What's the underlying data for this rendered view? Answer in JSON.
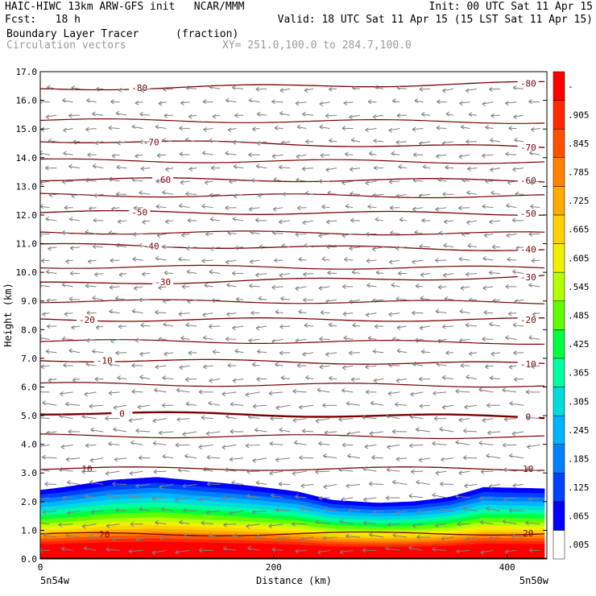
{
  "header": {
    "line1_left": "HAIC-HIWC 13km ARW-GFS init   NCAR/MMM",
    "line1_right": "Init: 00 UTC Sat 11 Apr 15",
    "fcst": "Fcst:   18 h",
    "valid": "Valid: 18 UTC Sat 11 Apr 15 (15 LST Sat 11 Apr 15)",
    "field": "Boundary Layer Tracer",
    "field_units": "(fraction)",
    "overlay": "Circulation vectors",
    "xsec": "XY= 251.0,100.0 to 284.7,100.0"
  },
  "chart_data": {
    "type": "heatmap",
    "xlabel": "Distance (km)",
    "ylabel": "Height (km)",
    "xlim": [
      0,
      434
    ],
    "ylim": [
      0,
      17
    ],
    "x_ticks": [
      "0",
      "200",
      "400"
    ],
    "y_ticks": [
      "0.0",
      "1.0",
      "2.0",
      "3.0",
      "4.0",
      "5.0",
      "6.0",
      "7.0",
      "8.0",
      "9.0",
      "10.0",
      "11.0",
      "12.0",
      "13.0",
      "14.0",
      "15.0",
      "16.0",
      "17.0"
    ],
    "endpoint_left": "5n54w",
    "endpoint_right": "5n50w",
    "colorbar": {
      "labels": [
        ".005",
        ".065",
        ".125",
        ".185",
        ".245",
        ".305",
        ".365",
        ".425",
        ".485",
        ".545",
        ".605",
        ".665",
        ".725",
        ".785",
        ".845",
        ".905",
        "-"
      ],
      "colors": [
        "#ffffff",
        "#0000ff",
        "#0040ff",
        "#0080ff",
        "#00b4ff",
        "#00dcdc",
        "#00ffa0",
        "#00ff40",
        "#60ff00",
        "#b4ff00",
        "#f0f000",
        "#ffd200",
        "#ffaa00",
        "#ff8200",
        "#ff5000",
        "#ff2800",
        "#ff0000"
      ]
    },
    "tracer_top_km": [
      [
        0,
        2.4
      ],
      [
        20,
        2.5
      ],
      [
        60,
        2.75
      ],
      [
        100,
        2.85
      ],
      [
        140,
        2.7
      ],
      [
        180,
        2.55
      ],
      [
        220,
        2.35
      ],
      [
        250,
        2.05
      ],
      [
        290,
        1.95
      ],
      [
        320,
        2.0
      ],
      [
        350,
        2.15
      ],
      [
        380,
        2.5
      ],
      [
        434,
        2.45
      ]
    ],
    "temperature_contours": [
      {
        "label": "-80",
        "km": [
          16.4,
          16.6
        ]
      },
      {
        "label": "-70",
        "km": [
          14.6,
          14.35
        ]
      },
      {
        "label": "-60",
        "km": [
          13.25,
          13.2
        ]
      },
      {
        "label": "-50",
        "km": [
          12.1,
          12.05
        ]
      },
      {
        "label": "-40",
        "km": [
          10.95,
          10.8
        ]
      },
      {
        "label": "-30",
        "km": [
          9.6,
          9.85
        ]
      },
      {
        "label": "-20",
        "km": [
          8.35,
          8.35
        ]
      },
      {
        "label": "-10",
        "km": [
          6.95,
          6.8
        ]
      },
      {
        "label": "0",
        "km": [
          5.1,
          4.95
        ]
      },
      {
        "label": "10",
        "km": [
          3.15,
          3.15
        ]
      },
      {
        "label": "20",
        "km": [
          0.85,
          0.9
        ]
      }
    ],
    "plain_contour_levels_km": [
      15.3,
      13.9,
      12.7,
      11.4,
      10.2,
      9.0,
      7.6,
      6.1,
      4.3
    ]
  }
}
